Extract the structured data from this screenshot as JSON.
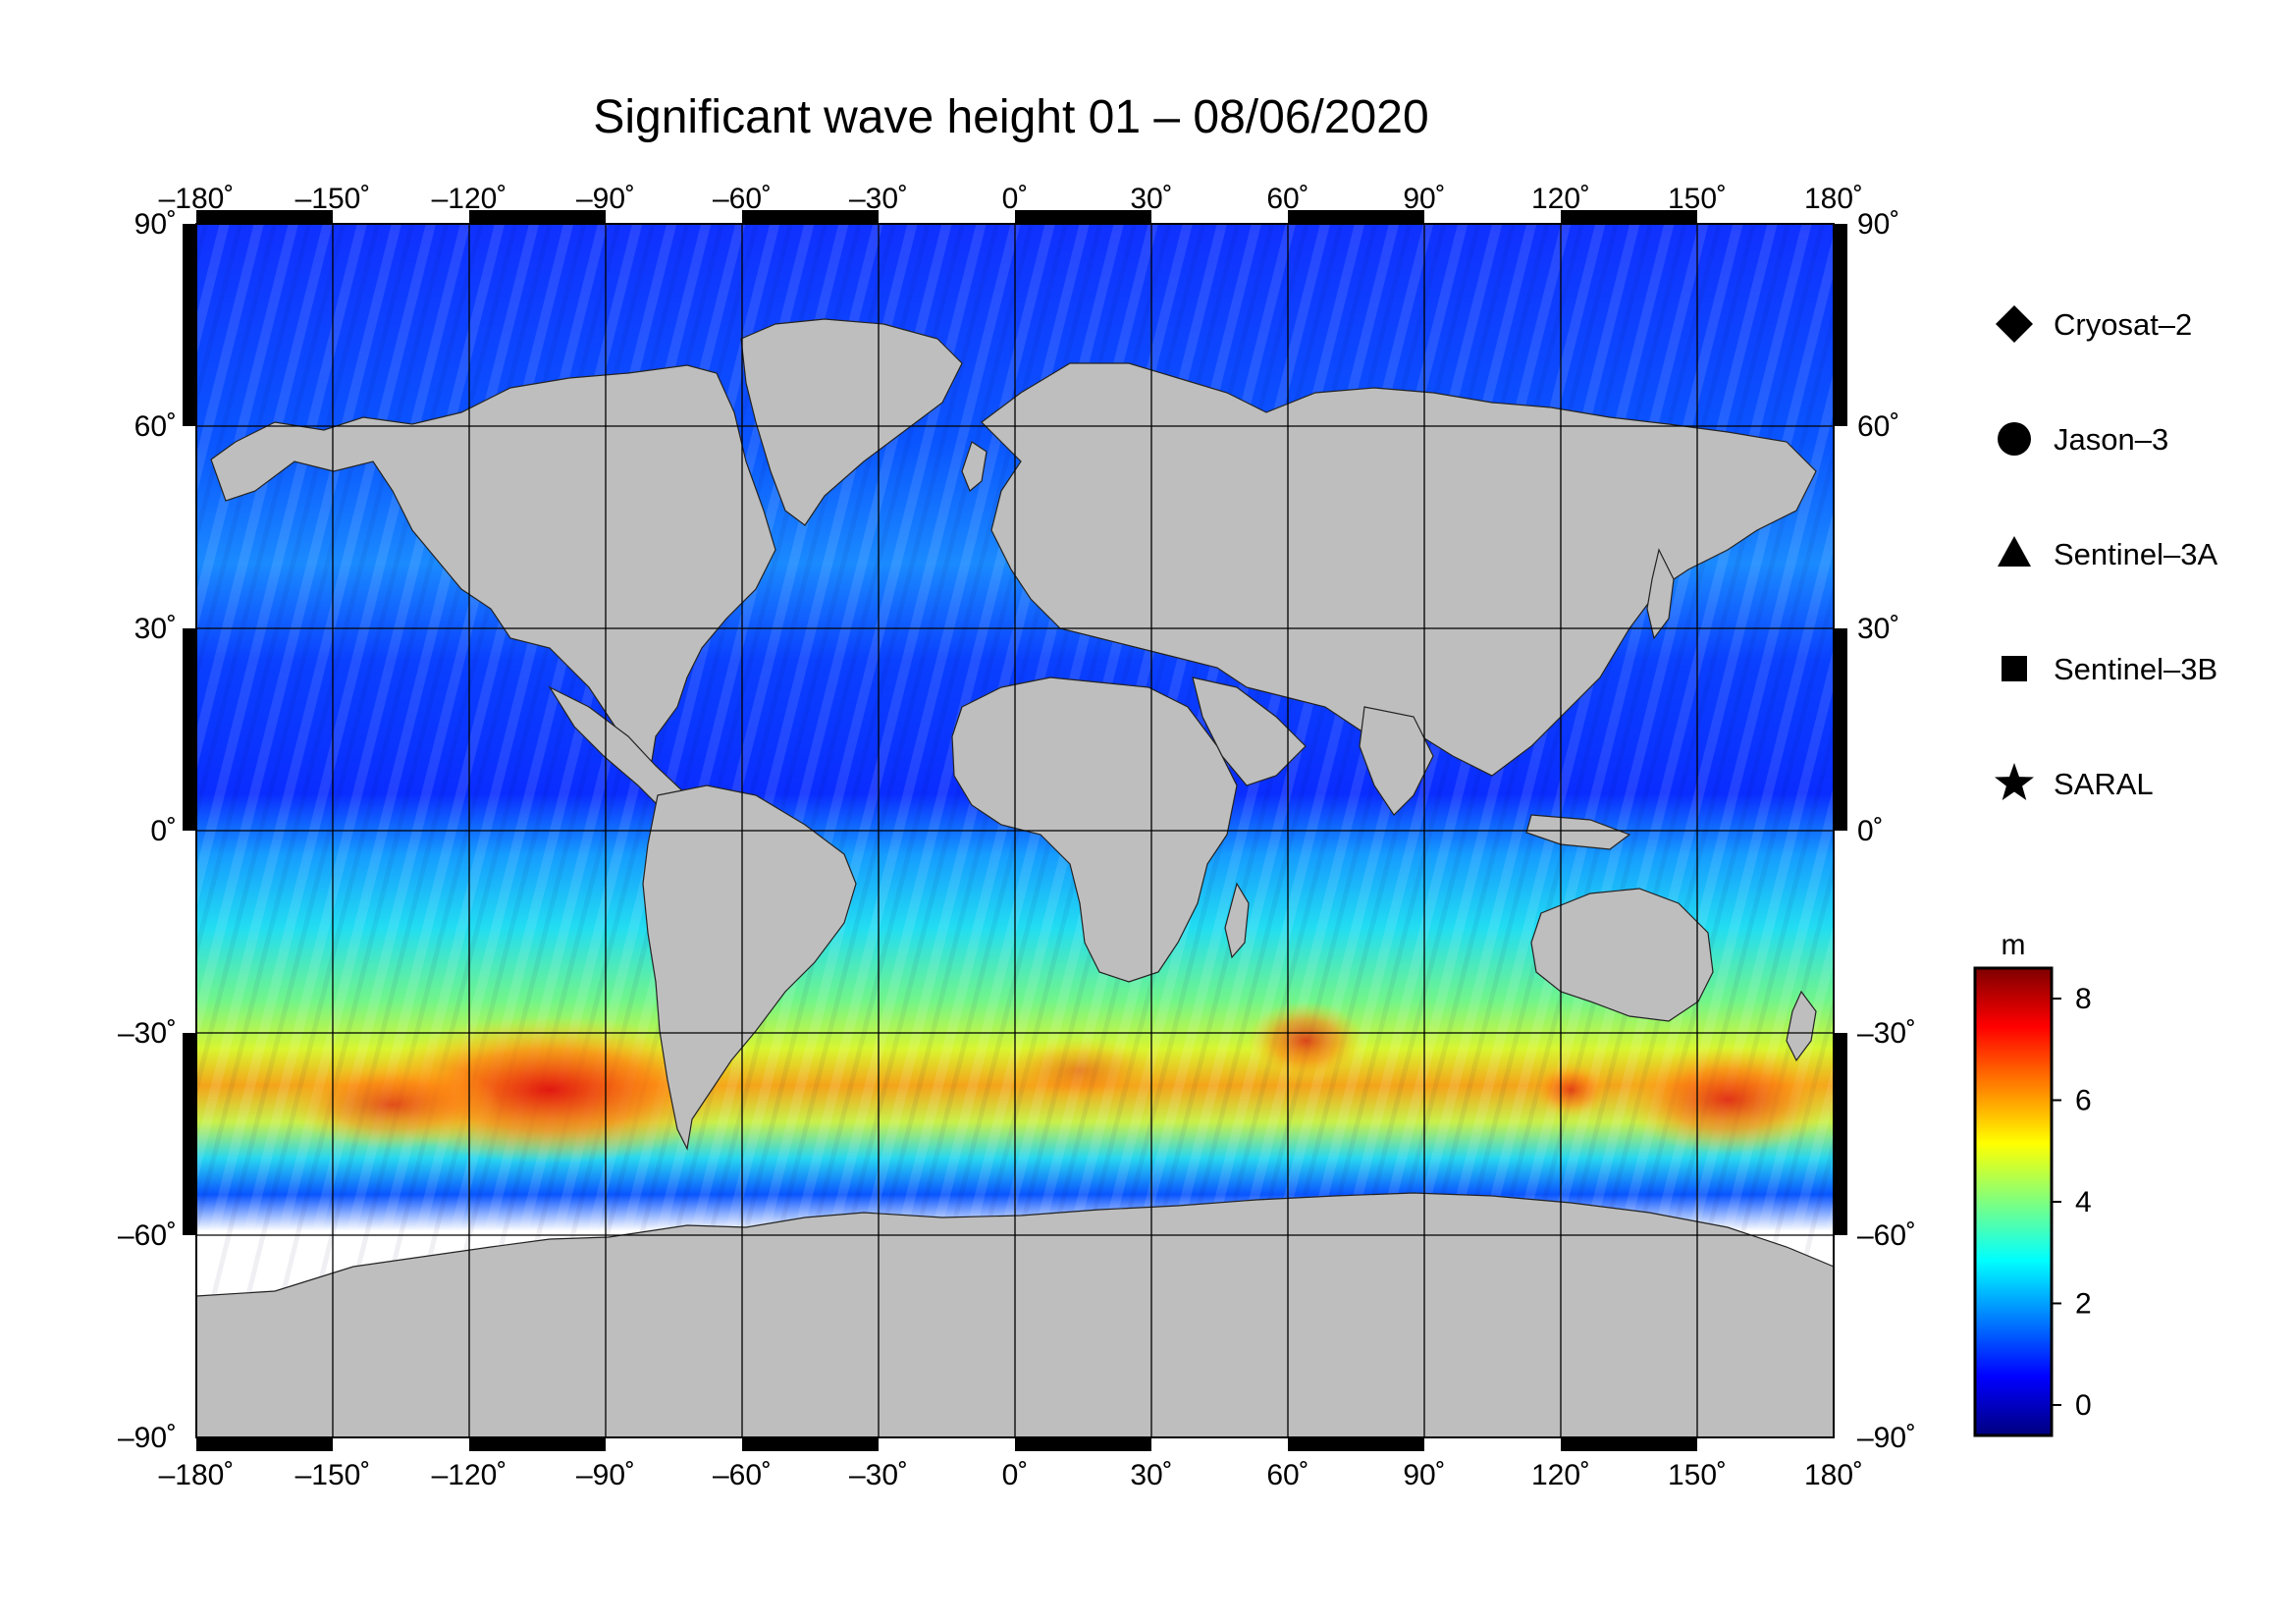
{
  "title": "Significant wave height 01 – 08/06/2020",
  "axes": {
    "lon_labels": [
      "–180˚",
      "–150˚",
      "–120˚",
      "–90˚",
      "–60˚",
      "–30˚",
      "0˚",
      "30˚",
      "60˚",
      "90˚",
      "120˚",
      "150˚",
      "180˚"
    ],
    "lat_labels_left": [
      "90˚",
      "60˚",
      "30˚",
      "0˚",
      "–30˚",
      "–60˚",
      "–90˚"
    ],
    "lat_labels_right": [
      "90˚",
      "60˚",
      "30˚",
      "0˚",
      "–30˚",
      "–60˚",
      "–90˚"
    ],
    "lon_range": [
      -180,
      180
    ],
    "lat_range": [
      -90,
      90
    ],
    "grid_step_deg": 30
  },
  "legend": {
    "items": [
      {
        "label": "Cryosat–2",
        "icon": "diamond-icon"
      },
      {
        "label": "Jason–3",
        "icon": "circle-icon"
      },
      {
        "label": "Sentinel–3A",
        "icon": "triangle-icon"
      },
      {
        "label": "Sentinel–3B",
        "icon": "square-icon"
      },
      {
        "label": "SARAL",
        "icon": "star-icon"
      }
    ]
  },
  "colorbar": {
    "unit": "m",
    "ticks": [
      "8",
      "6",
      "4",
      "2",
      "0"
    ],
    "range": [
      -0.6,
      8.6
    ],
    "colors": [
      "#00007f",
      "#0000ff",
      "#007fff",
      "#00ffff",
      "#7fff7f",
      "#ffff00",
      "#ff7f00",
      "#ff0000",
      "#7f0000"
    ]
  },
  "colors": {
    "land": "#bebebe",
    "ice": "#ffffff",
    "grid": "#000000"
  }
}
